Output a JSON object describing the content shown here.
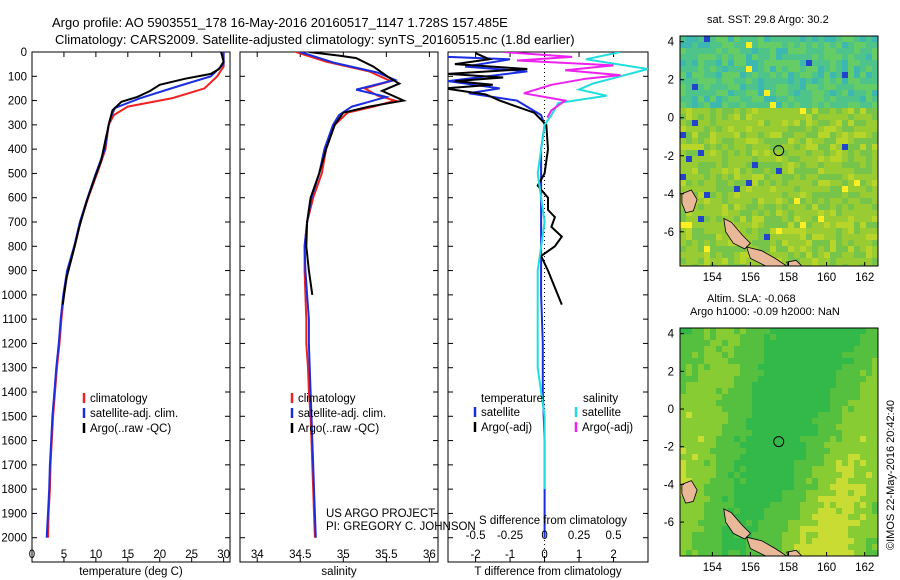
{
  "header": {
    "line1": "Argo profile: AO 5903551_178 16-May-2016 20160517_1147 1.728S 157.485E",
    "line2": "Climatology: CARS2009. Satellite-adjusted climatology: synTS_20160515.nc (1.8d earlier)"
  },
  "side_text": "©IMOS 22-May-2016 20:42:40",
  "credit": {
    "line1": "US ARGO PROJECT",
    "line2": "PI: GREGORY C. JOHNSON"
  },
  "colors": {
    "climatology": "#ee2222",
    "satellite": "#1a2ee0",
    "argo": "#000000",
    "sat_s": "#22dddd",
    "argo_s": "#ee22ee",
    "land": "#e8b898"
  },
  "chart_data": [
    {
      "id": "temperature",
      "type": "line",
      "xlabel": "temperature (deg C)",
      "ylabel": "",
      "xlim": [
        0,
        31
      ],
      "ylim": [
        0,
        2100
      ],
      "y_inverted": true,
      "xticks": [
        0,
        5,
        10,
        15,
        20,
        25,
        30
      ],
      "yticks": [
        0,
        100,
        200,
        300,
        400,
        500,
        600,
        700,
        800,
        900,
        1000,
        1100,
        1200,
        1300,
        1400,
        1500,
        1600,
        1700,
        1800,
        1900,
        2000
      ],
      "legend": [
        "climatology",
        "satellite-adj. clim.",
        "Argo(..raw -QC)"
      ],
      "series": [
        {
          "name": "climatology",
          "color": "#ee2222",
          "points": [
            [
              30,
              0
            ],
            [
              30,
              60
            ],
            [
              29,
              100
            ],
            [
              27,
              150
            ],
            [
              22,
              190
            ],
            [
              15,
              225
            ],
            [
              12.8,
              260
            ],
            [
              12,
              300
            ],
            [
              11.5,
              400
            ],
            [
              10.2,
              500
            ],
            [
              8.8,
              600
            ],
            [
              7.6,
              700
            ],
            [
              6.7,
              800
            ],
            [
              5.6,
              900
            ],
            [
              5,
              1000
            ],
            [
              4.6,
              1100
            ],
            [
              4.3,
              1200
            ],
            [
              3.9,
              1300
            ],
            [
              3.6,
              1400
            ],
            [
              3.3,
              1500
            ],
            [
              3.1,
              1600
            ],
            [
              2.9,
              1700
            ],
            [
              2.8,
              1800
            ],
            [
              2.6,
              1900
            ],
            [
              2.5,
              2000
            ]
          ]
        },
        {
          "name": "satellite",
          "color": "#1a2ee0",
          "points": [
            [
              30,
              0
            ],
            [
              30,
              50
            ],
            [
              28,
              100
            ],
            [
              23,
              140
            ],
            [
              17,
              190
            ],
            [
              13,
              230
            ],
            [
              12.3,
              270
            ],
            [
              12,
              300
            ],
            [
              11.4,
              400
            ],
            [
              10,
              500
            ],
            [
              8.7,
              600
            ],
            [
              7.5,
              700
            ],
            [
              6.6,
              800
            ],
            [
              5.5,
              900
            ],
            [
              4.9,
              1000
            ],
            [
              4.5,
              1100
            ],
            [
              4.2,
              1200
            ],
            [
              3.8,
              1300
            ],
            [
              3.5,
              1400
            ],
            [
              3.2,
              1500
            ],
            [
              3,
              1600
            ],
            [
              2.8,
              1700
            ],
            [
              2.7,
              1800
            ],
            [
              2.5,
              1900
            ],
            [
              2.3,
              2000
            ]
          ]
        },
        {
          "name": "argo",
          "color": "#000000",
          "points": [
            [
              29.6,
              0
            ],
            [
              30,
              40
            ],
            [
              29.3,
              70
            ],
            [
              28,
              90
            ],
            [
              24,
              110
            ],
            [
              20,
              135
            ],
            [
              18.5,
              160
            ],
            [
              16.5,
              185
            ],
            [
              14,
              205
            ],
            [
              12.6,
              240
            ],
            [
              12.2,
              280
            ],
            [
              11.6,
              350
            ],
            [
              10.8,
              450
            ],
            [
              9.8,
              520
            ],
            [
              8.5,
              620
            ],
            [
              7.4,
              720
            ],
            [
              6.3,
              840
            ],
            [
              5.4,
              930
            ],
            [
              4.8,
              1040
            ]
          ]
        }
      ]
    },
    {
      "id": "salinity",
      "type": "line",
      "xlabel": "salinity",
      "ylabel": "",
      "xlim": [
        33.8,
        36.1
      ],
      "ylim": [
        0,
        2100
      ],
      "y_inverted": true,
      "xticks": [
        34,
        34.5,
        35,
        35.5,
        36
      ],
      "legend": [
        "climatology",
        "satellite-adj. clim.",
        "Argo(..raw -QC)"
      ],
      "series": [
        {
          "name": "climatology",
          "color": "#ee2222",
          "points": [
            [
              34.45,
              0
            ],
            [
              34.8,
              40
            ],
            [
              35.3,
              80
            ],
            [
              35.55,
              120
            ],
            [
              35.25,
              150
            ],
            [
              35.4,
              180
            ],
            [
              35.6,
              200
            ],
            [
              35.35,
              225
            ],
            [
              35.05,
              250
            ],
            [
              34.9,
              300
            ],
            [
              34.8,
              400
            ],
            [
              34.75,
              500
            ],
            [
              34.65,
              600
            ],
            [
              34.58,
              700
            ],
            [
              34.55,
              800
            ],
            [
              34.55,
              900
            ],
            [
              34.56,
              1000
            ],
            [
              34.57,
              1100
            ],
            [
              34.57,
              1200
            ],
            [
              34.59,
              1300
            ],
            [
              34.6,
              1400
            ],
            [
              34.62,
              1500
            ],
            [
              34.63,
              1600
            ],
            [
              34.64,
              1700
            ],
            [
              34.65,
              1800
            ],
            [
              34.66,
              1900
            ],
            [
              34.67,
              2000
            ]
          ]
        },
        {
          "name": "satellite",
          "color": "#1a2ee0",
          "points": [
            [
              34.5,
              0
            ],
            [
              34.9,
              45
            ],
            [
              35.4,
              85
            ],
            [
              35.6,
              115
            ],
            [
              35.15,
              155
            ],
            [
              35.5,
              185
            ],
            [
              35.3,
              205
            ],
            [
              35.1,
              225
            ],
            [
              34.95,
              260
            ],
            [
              34.88,
              300
            ],
            [
              34.78,
              400
            ],
            [
              34.72,
              500
            ],
            [
              34.63,
              600
            ],
            [
              34.58,
              700
            ],
            [
              34.55,
              800
            ],
            [
              34.56,
              900
            ],
            [
              34.58,
              1000
            ],
            [
              34.6,
              1100
            ],
            [
              34.6,
              1200
            ],
            [
              34.61,
              1300
            ],
            [
              34.62,
              1400
            ],
            [
              34.63,
              1500
            ],
            [
              34.64,
              1600
            ],
            [
              34.65,
              1700
            ],
            [
              34.66,
              1800
            ],
            [
              34.67,
              1900
            ],
            [
              34.68,
              2000
            ]
          ]
        },
        {
          "name": "argo",
          "color": "#000000",
          "points": [
            [
              34.6,
              0
            ],
            [
              34.95,
              15
            ],
            [
              35.15,
              25
            ],
            [
              35.35,
              60
            ],
            [
              35.55,
              110
            ],
            [
              35.65,
              130
            ],
            [
              35.45,
              160
            ],
            [
              35.7,
              200
            ],
            [
              35.3,
              225
            ],
            [
              35,
              250
            ],
            [
              34.9,
              300
            ],
            [
              34.8,
              400
            ],
            [
              34.72,
              500
            ],
            [
              34.62,
              600
            ],
            [
              34.58,
              700
            ],
            [
              34.57,
              800
            ],
            [
              34.6,
              900
            ],
            [
              34.64,
              1000
            ]
          ]
        }
      ]
    },
    {
      "id": "differences",
      "type": "line",
      "xlabel": "T difference from climatology",
      "x2label": "S difference from climatology",
      "xlim": [
        -2.8,
        3
      ],
      "ylim": [
        0,
        2100
      ],
      "y_inverted": true,
      "xticks": [
        -2,
        -1,
        0,
        1,
        2
      ],
      "x2ticks": [
        "-0.5",
        "-0.25",
        "0",
        "0.25",
        "0.5"
      ],
      "legend_temperature": {
        "title": "temperature",
        "entries": [
          "satellite",
          "Argo(-adj)"
        ]
      },
      "legend_salinity": {
        "title": "salinity",
        "entries": [
          "satellite",
          "Argo(-adj)"
        ]
      },
      "series": [
        {
          "name": "T satellite",
          "color": "#1a2ee0",
          "points": [
            [
              -2.8,
              20
            ],
            [
              -1,
              30
            ],
            [
              -2.3,
              60
            ],
            [
              -0.5,
              80
            ],
            [
              -2.8,
              120
            ],
            [
              -1.3,
              150
            ],
            [
              -2.2,
              170
            ],
            [
              -0.8,
              200
            ],
            [
              -0.1,
              260
            ],
            [
              0,
              300
            ],
            [
              -0.1,
              400
            ],
            [
              -0.1,
              600
            ],
            [
              -0.1,
              800
            ],
            [
              -0.1,
              1000
            ],
            [
              -0.05,
              1200
            ],
            [
              -0.05,
              1400
            ],
            [
              0,
              1600
            ],
            [
              0,
              1800
            ],
            [
              0,
              2000
            ]
          ]
        },
        {
          "name": "T Argo",
          "color": "#000000",
          "points": [
            [
              -2,
              5
            ],
            [
              -1.6,
              30
            ],
            [
              -2.6,
              50
            ],
            [
              -0.5,
              70
            ],
            [
              -2.8,
              90
            ],
            [
              -1.2,
              105
            ],
            [
              -2.6,
              120
            ],
            [
              -1.5,
              135
            ],
            [
              -2.9,
              150
            ],
            [
              -1.7,
              175
            ],
            [
              -1.3,
              200
            ],
            [
              -0.3,
              250
            ],
            [
              0.05,
              300
            ],
            [
              0.1,
              400
            ],
            [
              0,
              500
            ],
            [
              -0.2,
              550
            ],
            [
              0.1,
              600
            ],
            [
              0.1,
              650
            ],
            [
              0.3,
              680
            ],
            [
              0.2,
              720
            ],
            [
              0.5,
              760
            ],
            [
              0.3,
              800
            ],
            [
              -0.1,
              840
            ],
            [
              0.1,
              900
            ],
            [
              0.5,
              1040
            ]
          ]
        },
        {
          "name": "S satellite",
          "color": "#22dddd",
          "points": [
            [
              0.55,
              0
            ],
            [
              0.3,
              30
            ],
            [
              0.75,
              70
            ],
            [
              0.55,
              100
            ],
            [
              0.35,
              130
            ],
            [
              0.25,
              155
            ],
            [
              0.45,
              180
            ],
            [
              0.1,
              210
            ],
            [
              0.05,
              260
            ],
            [
              0,
              300
            ],
            [
              -0.05,
              500
            ],
            [
              0,
              700
            ],
            [
              -0.05,
              900
            ],
            [
              -0.05,
              1100
            ],
            [
              -0.05,
              1300
            ],
            [
              0,
              1500
            ],
            [
              0,
              1700
            ],
            [
              0,
              1800
            ]
          ]
        },
        {
          "name": "S Argo",
          "color": "#ee22ee",
          "points": [
            [
              -0.3,
              0
            ],
            [
              0.2,
              20
            ],
            [
              -0.2,
              35
            ],
            [
              0.5,
              55
            ],
            [
              0.15,
              75
            ],
            [
              0.55,
              95
            ],
            [
              0.3,
              110
            ],
            [
              0.05,
              135
            ],
            [
              -0.15,
              170
            ],
            [
              0.15,
              200
            ],
            [
              0.05,
              240
            ],
            [
              0.02,
              270
            ]
          ]
        }
      ]
    }
  ],
  "maps": [
    {
      "id": "sst_map",
      "title1": "sat. SST: 29.8  Argo: 30.2",
      "title2": "",
      "lon_ticks": [
        154,
        156,
        158,
        160,
        162
      ],
      "lat_ticks": [
        4,
        2,
        0,
        -2,
        -4,
        -6
      ],
      "lon_range": [
        152.3,
        162.7
      ],
      "lat_range": [
        -7.8,
        4.3
      ],
      "marker": {
        "lon": 157.485,
        "lat": -1.728
      }
    },
    {
      "id": "sla_map",
      "title1": "Altim. SLA: -0.068",
      "title2": "Argo h1000: -0.09 h2000: NaN",
      "lon_ticks": [
        154,
        156,
        158,
        160,
        162
      ],
      "lat_ticks": [
        4,
        2,
        0,
        -2,
        -4,
        -6
      ],
      "lon_range": [
        152.3,
        162.7
      ],
      "lat_range": [
        -7.8,
        4.3
      ],
      "marker": {
        "lon": 157.485,
        "lat": -1.728
      }
    }
  ]
}
